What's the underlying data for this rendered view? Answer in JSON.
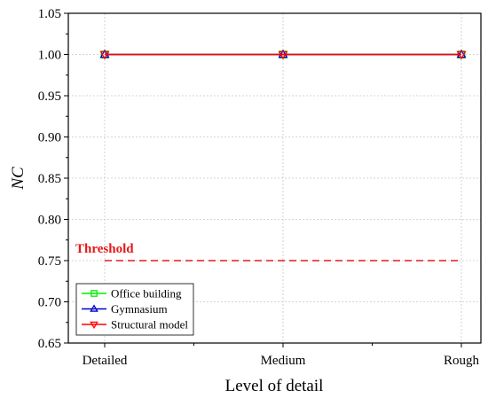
{
  "chart_data": {
    "type": "line",
    "categories": [
      "Detailed",
      "Medium",
      "Rough"
    ],
    "series": [
      {
        "name": "Office building",
        "values": [
          1.0,
          1.0,
          1.0
        ],
        "color": "#00ee00",
        "marker": "square"
      },
      {
        "name": "Gymnasium",
        "values": [
          1.0,
          1.0,
          1.0
        ],
        "color": "#0000cc",
        "marker": "triangle-up"
      },
      {
        "name": "Structural model",
        "values": [
          1.0,
          1.0,
          1.0
        ],
        "color": "#ff0000",
        "marker": "triangle-down"
      }
    ],
    "threshold": {
      "label": "Threshold",
      "value": 0.75,
      "color": "#e31a1c",
      "style": "dashed"
    },
    "xlabel": "Level of detail",
    "ylabel": "NC",
    "ylim": [
      0.65,
      1.05
    ],
    "yticks": [
      "0.65",
      "0.70",
      "0.75",
      "0.80",
      "0.85",
      "0.90",
      "0.95",
      "1.00",
      "1.05"
    ],
    "grid": true,
    "legend_position": "bottom-left"
  }
}
